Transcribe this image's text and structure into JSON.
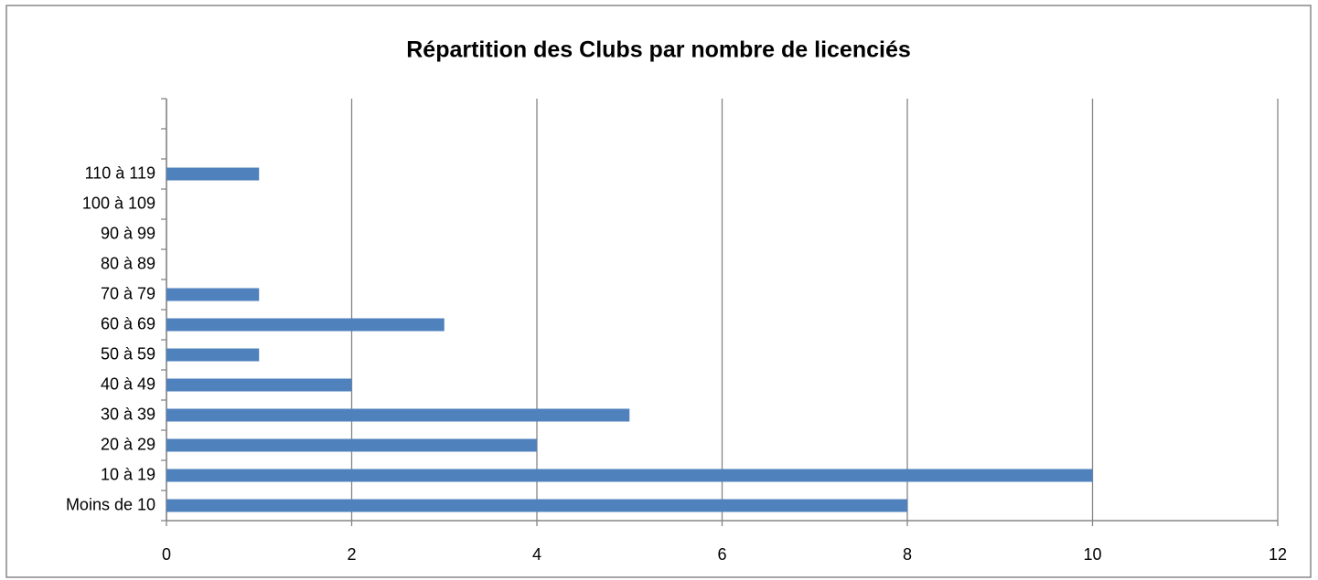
{
  "chart_data": {
    "type": "bar",
    "orientation": "horizontal",
    "title": "Répartition des Clubs par nombre de licenciés",
    "categories": [
      "Moins de 10",
      "10 à 19",
      "20 à 29",
      "30 à 39",
      "40 à 49",
      "50 à 59",
      "60 à 69",
      "70 à 79",
      "80 à 89",
      "90 à 99",
      "100 à 109",
      "110 à 119",
      null,
      null
    ],
    "values": [
      8,
      10,
      4,
      5,
      2,
      1,
      3,
      1,
      0,
      0,
      0,
      1,
      null,
      null
    ],
    "color": "#4f81bd",
    "xlim": [
      0,
      12
    ],
    "xticks": [
      0,
      2,
      4,
      6,
      8,
      10,
      12
    ],
    "grid": true
  }
}
